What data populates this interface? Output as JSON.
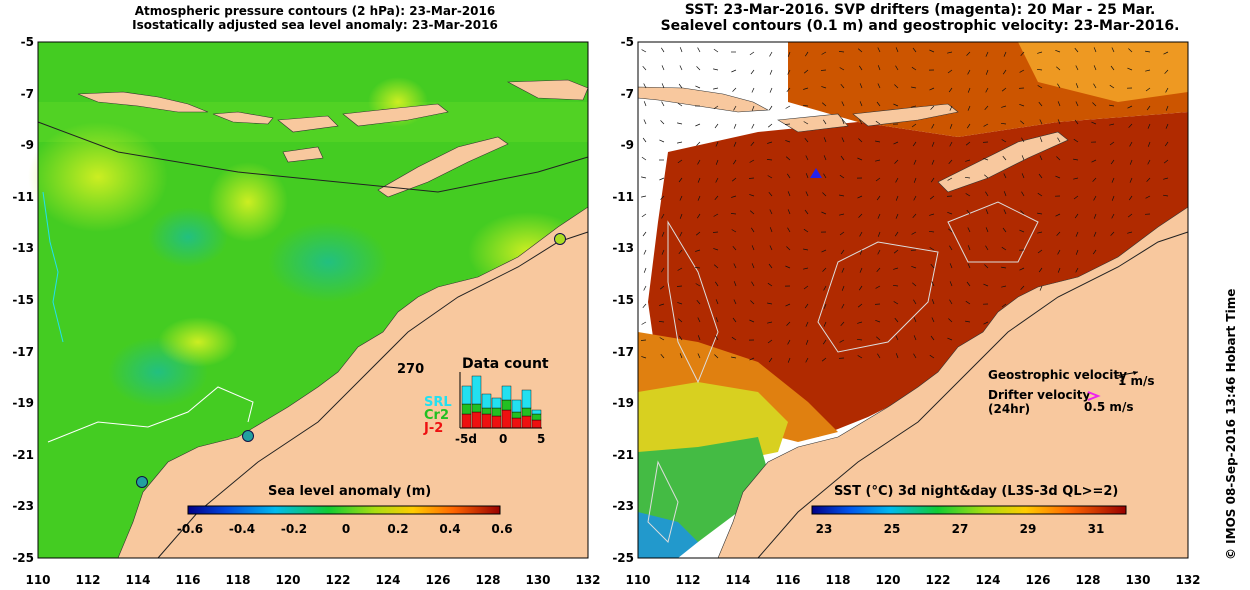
{
  "left_panel": {
    "title_line1": "Atmospheric pressure contours (2 hPa): 23-Mar-2016",
    "title_line2": "Isostatically adjusted sea level anomaly: 23-Mar-2016",
    "colorbar_title": "Sea level anomaly (m)",
    "colorbar_ticks": [
      "-0.6",
      "-0.4",
      "-0.2",
      "0",
      "0.2",
      "0.4",
      "0.6"
    ],
    "data_count": {
      "title": "Data count",
      "max_label": "270",
      "series": [
        {
          "name": "SRL",
          "color": "#22e0f0"
        },
        {
          "name": "Cr2",
          "color": "#22c022"
        },
        {
          "name": "J-2",
          "color": "#ee1010"
        }
      ],
      "x_ticks": [
        "-5d",
        "0",
        "5"
      ]
    }
  },
  "right_panel": {
    "title_line1": "SST: 23-Mar-2016. SVP drifters (magenta): 20 Mar - 25 Mar.",
    "title_line2": "Sealevel contours (0.1 m) and geostrophic velocity: 23-Mar-2016.",
    "colorbar_title": "SST (°C) 3d night&day (L3S-3d QL>=2)",
    "colorbar_ticks": [
      "23",
      "25",
      "27",
      "29",
      "31"
    ],
    "legend": {
      "geo_label": "Geostrophic velocity",
      "geo_scale": "1 m/s",
      "drifter_label_1": "Drifter velocity",
      "drifter_label_2": "(24hr)",
      "drifter_scale": "0.5 m/s"
    }
  },
  "axes": {
    "y_ticks": [
      "-5",
      "-7",
      "-9",
      "-11",
      "-13",
      "-15",
      "-17",
      "-19",
      "-21",
      "-23",
      "-25"
    ],
    "x_ticks": [
      "110",
      "112",
      "114",
      "116",
      "118",
      "120",
      "122",
      "124",
      "126",
      "128",
      "130",
      "132"
    ]
  },
  "credit": "© IMOS 08-Sep-2016 13:46 Hobart Time",
  "colors": {
    "land": "#f8c89e",
    "sea_green": "#33cc22",
    "sst_red": "#b02000"
  }
}
